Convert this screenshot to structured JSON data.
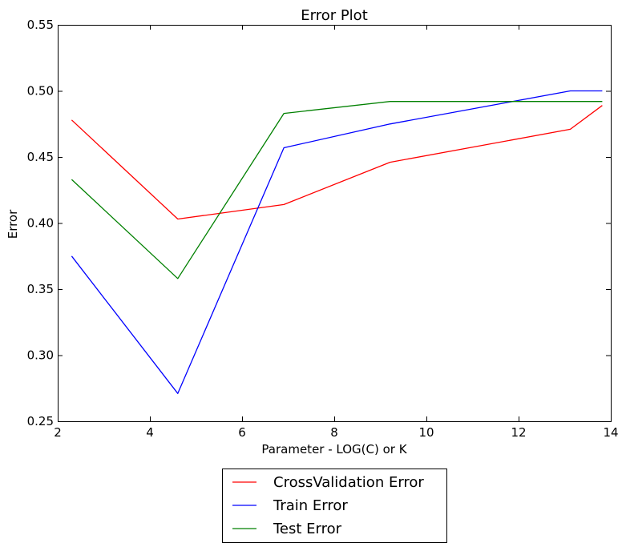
{
  "chart_data": {
    "type": "line",
    "title": "Error Plot",
    "xlabel": "Parameter - LOG(C) or K",
    "ylabel": "Error",
    "xlim": [
      2,
      14
    ],
    "ylim": [
      0.25,
      0.55
    ],
    "xticks": [
      2,
      4,
      6,
      8,
      10,
      12,
      14
    ],
    "xtick_labels": [
      "2",
      "4",
      "6",
      "8",
      "10",
      "12",
      "14"
    ],
    "yticks": [
      0.25,
      0.3,
      0.35,
      0.4,
      0.45,
      0.5,
      0.55
    ],
    "ytick_labels": [
      "0.25",
      "0.30",
      "0.35",
      "0.40",
      "0.45",
      "0.50",
      "0.55"
    ],
    "grid": false,
    "legend_position": "below plot",
    "series": [
      {
        "name": "CrossValidation Error",
        "color": "#ff0000",
        "x": [
          2.303,
          4.605,
          6.908,
          9.21,
          13.122,
          13.816
        ],
        "y": [
          0.478,
          0.403,
          0.414,
          0.446,
          0.471,
          0.489
        ]
      },
      {
        "name": "Train Error",
        "color": "#0000ff",
        "x": [
          2.303,
          4.605,
          6.908,
          9.21,
          13.122,
          13.816
        ],
        "y": [
          0.375,
          0.271,
          0.457,
          0.475,
          0.5,
          0.5
        ]
      },
      {
        "name": "Test Error",
        "color": "#008000",
        "x": [
          2.303,
          4.605,
          6.908,
          9.21,
          13.122,
          13.816
        ],
        "y": [
          0.433,
          0.358,
          0.483,
          0.492,
          0.492,
          0.492
        ]
      }
    ]
  }
}
